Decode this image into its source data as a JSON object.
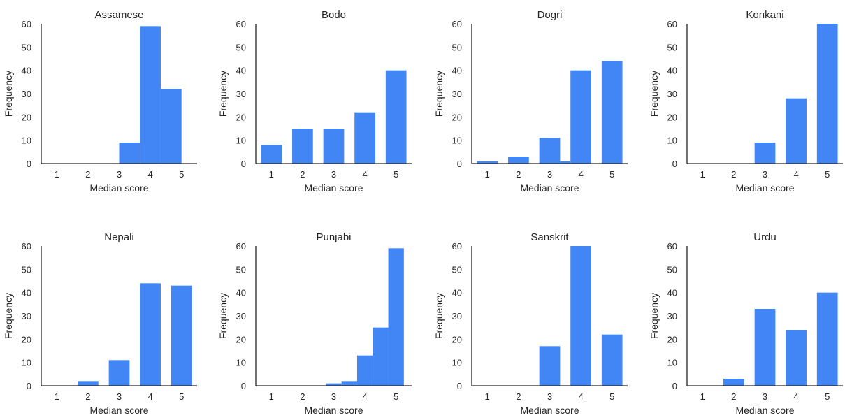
{
  "chart_data": [
    {
      "type": "bar",
      "title": "Assamese",
      "xlabel": "Median score",
      "ylabel": "Frequency",
      "xticks": [
        "1",
        "2",
        "3",
        "4",
        "5"
      ],
      "yticks": [
        "0",
        "10",
        "20",
        "30",
        "40",
        "50",
        "60"
      ],
      "ylim": [
        0,
        60
      ],
      "xlim": [
        0.5,
        5.5
      ],
      "grid": false,
      "color": "#4285f4",
      "bars": [
        {
          "x0": 3.0,
          "x1": 3.667,
          "y": 9
        },
        {
          "x0": 3.667,
          "x1": 4.333,
          "y": 59
        },
        {
          "x0": 4.333,
          "x1": 5.0,
          "y": 32
        }
      ]
    },
    {
      "type": "bar",
      "title": "Bodo",
      "xlabel": "Median score",
      "ylabel": "Frequency",
      "xticks": [
        "1",
        "2",
        "3",
        "4",
        "5"
      ],
      "yticks": [
        "0",
        "10",
        "20",
        "30",
        "40",
        "50",
        "60"
      ],
      "ylim": [
        0,
        60
      ],
      "xlim": [
        0.5,
        5.5
      ],
      "grid": false,
      "color": "#4285f4",
      "bars": [
        {
          "x0": 0.667,
          "x1": 1.333,
          "y": 8
        },
        {
          "x0": 1.667,
          "x1": 2.333,
          "y": 15
        },
        {
          "x0": 2.667,
          "x1": 3.333,
          "y": 15
        },
        {
          "x0": 3.667,
          "x1": 4.333,
          "y": 22
        },
        {
          "x0": 4.667,
          "x1": 5.333,
          "y": 40
        }
      ]
    },
    {
      "type": "bar",
      "title": "Dogri",
      "xlabel": "Median score",
      "ylabel": "Frequency",
      "xticks": [
        "1",
        "2",
        "3",
        "4",
        "5"
      ],
      "yticks": [
        "0",
        "10",
        "20",
        "30",
        "40",
        "50",
        "60"
      ],
      "ylim": [
        0,
        60
      ],
      "xlim": [
        0.5,
        5.5
      ],
      "grid": false,
      "color": "#4285f4",
      "bars": [
        {
          "x0": 0.667,
          "x1": 1.333,
          "y": 1
        },
        {
          "x0": 1.667,
          "x1": 2.333,
          "y": 3
        },
        {
          "x0": 2.667,
          "x1": 3.333,
          "y": 11
        },
        {
          "x0": 3.333,
          "x1": 3.667,
          "y": 1
        },
        {
          "x0": 3.667,
          "x1": 4.333,
          "y": 40
        },
        {
          "x0": 4.667,
          "x1": 5.333,
          "y": 44
        }
      ]
    },
    {
      "type": "bar",
      "title": "Konkani",
      "xlabel": "Median score",
      "ylabel": "Frequency",
      "xticks": [
        "1",
        "2",
        "3",
        "4",
        "5"
      ],
      "yticks": [
        "0",
        "10",
        "20",
        "30",
        "40",
        "50",
        "60"
      ],
      "ylim": [
        0,
        60
      ],
      "xlim": [
        0.5,
        5.5
      ],
      "grid": false,
      "color": "#4285f4",
      "bars": [
        {
          "x0": 2.667,
          "x1": 3.333,
          "y": 9
        },
        {
          "x0": 3.667,
          "x1": 4.333,
          "y": 28
        },
        {
          "x0": 4.667,
          "x1": 5.333,
          "y": 60
        }
      ]
    },
    {
      "type": "bar",
      "title": "Nepali",
      "xlabel": "Median score",
      "ylabel": "Frequency",
      "xticks": [
        "1",
        "2",
        "3",
        "4",
        "5"
      ],
      "yticks": [
        "0",
        "10",
        "20",
        "30",
        "40",
        "50",
        "60"
      ],
      "ylim": [
        0,
        60
      ],
      "xlim": [
        0.5,
        5.5
      ],
      "grid": false,
      "color": "#4285f4",
      "bars": [
        {
          "x0": 1.667,
          "x1": 2.333,
          "y": 2
        },
        {
          "x0": 2.667,
          "x1": 3.333,
          "y": 11
        },
        {
          "x0": 3.667,
          "x1": 4.333,
          "y": 44
        },
        {
          "x0": 4.667,
          "x1": 5.333,
          "y": 43
        }
      ]
    },
    {
      "type": "bar",
      "title": "Punjabi",
      "xlabel": "Median score",
      "ylabel": "Frequency",
      "xticks": [
        "1",
        "2",
        "3",
        "4",
        "5"
      ],
      "yticks": [
        "0",
        "10",
        "20",
        "30",
        "40",
        "50",
        "60"
      ],
      "ylim": [
        0,
        60
      ],
      "xlim": [
        0.5,
        5.5
      ],
      "grid": false,
      "color": "#4285f4",
      "bars": [
        {
          "x0": 2.75,
          "x1": 3.25,
          "y": 1
        },
        {
          "x0": 3.25,
          "x1": 3.75,
          "y": 2
        },
        {
          "x0": 3.75,
          "x1": 4.25,
          "y": 13
        },
        {
          "x0": 4.25,
          "x1": 4.75,
          "y": 25
        },
        {
          "x0": 4.75,
          "x1": 5.25,
          "y": 59
        }
      ]
    },
    {
      "type": "bar",
      "title": "Sanskrit",
      "xlabel": "Median score",
      "ylabel": "Frequency",
      "xticks": [
        "1",
        "2",
        "3",
        "4",
        "5"
      ],
      "yticks": [
        "0",
        "10",
        "20",
        "30",
        "40",
        "50",
        "60"
      ],
      "ylim": [
        0,
        60
      ],
      "xlim": [
        0.5,
        5.5
      ],
      "grid": false,
      "color": "#4285f4",
      "bars": [
        {
          "x0": 2.667,
          "x1": 3.333,
          "y": 17
        },
        {
          "x0": 3.667,
          "x1": 4.333,
          "y": 60
        },
        {
          "x0": 4.667,
          "x1": 5.333,
          "y": 22
        }
      ]
    },
    {
      "type": "bar",
      "title": "Urdu",
      "xlabel": "Median score",
      "ylabel": "Frequency",
      "xticks": [
        "1",
        "2",
        "3",
        "4",
        "5"
      ],
      "yticks": [
        "0",
        "10",
        "20",
        "30",
        "40",
        "50",
        "60"
      ],
      "ylim": [
        0,
        60
      ],
      "xlim": [
        0.5,
        5.5
      ],
      "grid": false,
      "color": "#4285f4",
      "bars": [
        {
          "x0": 1.667,
          "x1": 2.333,
          "y": 3
        },
        {
          "x0": 2.667,
          "x1": 3.333,
          "y": 33
        },
        {
          "x0": 3.667,
          "x1": 4.333,
          "y": 24
        },
        {
          "x0": 4.667,
          "x1": 5.333,
          "y": 40
        }
      ]
    }
  ]
}
